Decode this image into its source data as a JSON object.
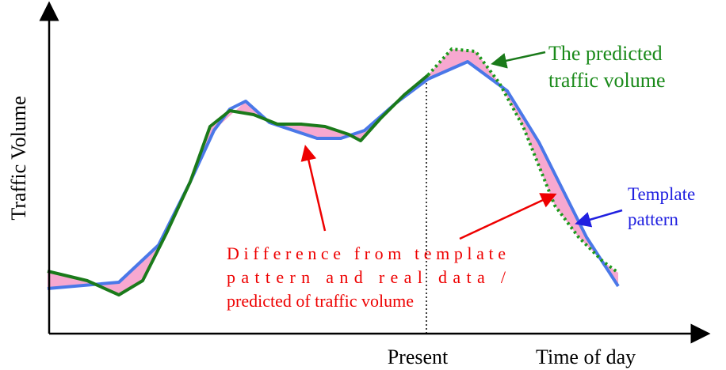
{
  "axes": {
    "y_label": "Traffic Volume",
    "x_present": "Present",
    "x_label": "Time of day"
  },
  "labels": {
    "predicted": [
      "The predicted",
      "traffic volume"
    ],
    "template": [
      "Template",
      "pattern"
    ],
    "difference": [
      "Difference from template",
      "pattern and real data /",
      "predicted of traffic volume"
    ]
  }
}
